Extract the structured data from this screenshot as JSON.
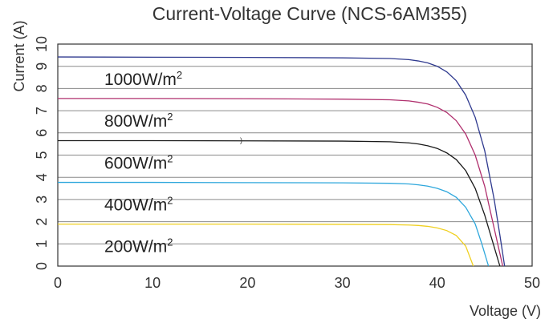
{
  "chart_data": {
    "type": "line",
    "title": "Current-Voltage Curve (NCS-6AM355)",
    "xlabel": "Voltage (V)",
    "ylabel": "Current (A)",
    "xlim": [
      0,
      50
    ],
    "ylim": [
      0,
      10
    ],
    "xticks": [
      "0",
      "10",
      "20",
      "30",
      "40",
      "50"
    ],
    "yticks": [
      "0",
      "1",
      "2",
      "3",
      "4",
      "5",
      "6",
      "7",
      "8",
      "9",
      "10"
    ],
    "grid": "horizontal",
    "series": [
      {
        "name": "1000W/m2",
        "label_main": "1000W/m",
        "label_sup": "2",
        "color": "#2f3a8f",
        "x": [
          0,
          10,
          20,
          30,
          35,
          37,
          38,
          39,
          40,
          41,
          42,
          43,
          44,
          45,
          46,
          46.6,
          47.1
        ],
        "y": [
          9.42,
          9.41,
          9.4,
          9.38,
          9.35,
          9.3,
          9.24,
          9.15,
          9.0,
          8.75,
          8.35,
          7.7,
          6.7,
          5.2,
          3.0,
          1.4,
          0
        ]
      },
      {
        "name": "800W/m2",
        "label_main": "800W/m",
        "label_sup": "2",
        "color": "#b0306e",
        "x": [
          0,
          10,
          20,
          30,
          35,
          37,
          38,
          39,
          40,
          41,
          42,
          43,
          44,
          45,
          46,
          46.9
        ],
        "y": [
          7.55,
          7.55,
          7.54,
          7.52,
          7.49,
          7.44,
          7.38,
          7.3,
          7.15,
          6.92,
          6.55,
          5.95,
          5.0,
          3.6,
          1.7,
          0
        ]
      },
      {
        "name": "600W/m2",
        "label_main": "600W/m",
        "label_sup": "2",
        "color": "#1a1a1a",
        "x": [
          0,
          10,
          20,
          30,
          35,
          37,
          38,
          39,
          40,
          41,
          42,
          43,
          44,
          45,
          46.6
        ],
        "y": [
          5.65,
          5.65,
          5.64,
          5.63,
          5.6,
          5.55,
          5.5,
          5.42,
          5.3,
          5.1,
          4.8,
          4.3,
          3.5,
          2.3,
          0
        ]
      },
      {
        "name": "400W/m2",
        "label_main": "400W/m",
        "label_sup": "2",
        "color": "#2ea7dc",
        "x": [
          0,
          10,
          20,
          30,
          35,
          37,
          38,
          39,
          40,
          41,
          42,
          43,
          44,
          44.7,
          45.4
        ],
        "y": [
          3.77,
          3.77,
          3.76,
          3.75,
          3.73,
          3.7,
          3.66,
          3.6,
          3.5,
          3.35,
          3.1,
          2.65,
          1.9,
          1.0,
          0
        ]
      },
      {
        "name": "200W/m2",
        "label_main": "200W/m",
        "label_sup": "2",
        "color": "#f0d020",
        "x": [
          0,
          10,
          20,
          30,
          35,
          37,
          38,
          39,
          40,
          41,
          42,
          43,
          43.8
        ],
        "y": [
          1.89,
          1.89,
          1.89,
          1.88,
          1.87,
          1.85,
          1.83,
          1.79,
          1.72,
          1.6,
          1.38,
          0.9,
          0
        ]
      }
    ]
  }
}
